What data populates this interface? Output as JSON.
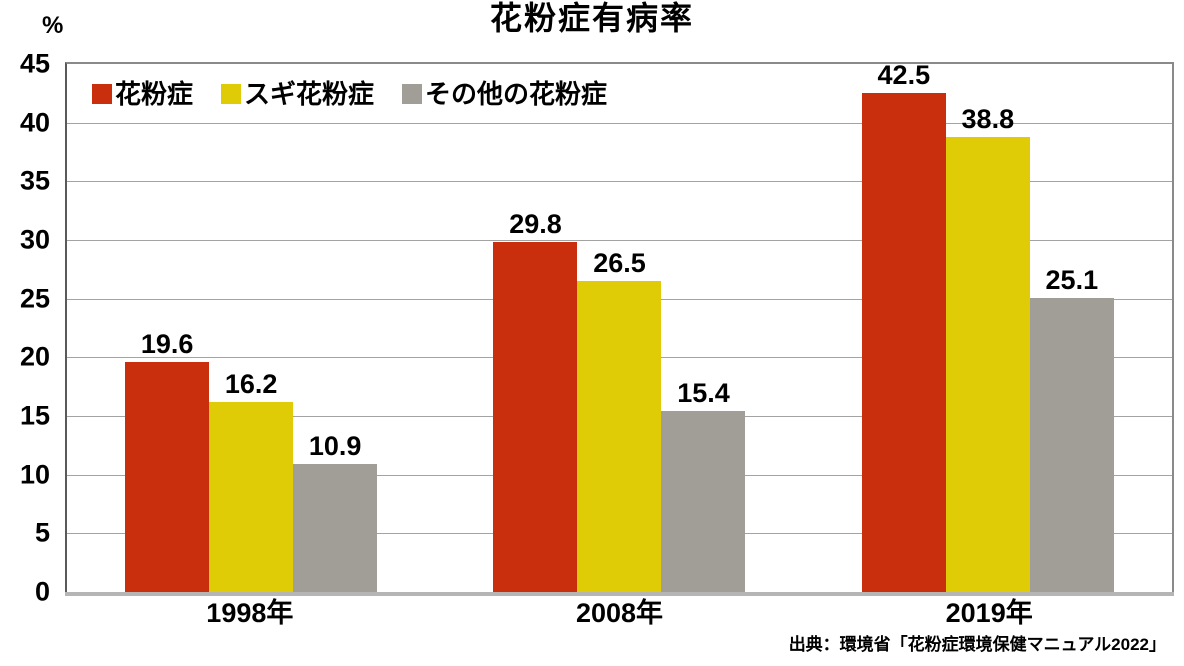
{
  "chart_data": {
    "type": "bar",
    "title": "花粉症有病率",
    "unit": "%",
    "categories": [
      "1998年",
      "2008年",
      "2019年"
    ],
    "series": [
      {
        "name": "花粉症",
        "color": "#CA2F0D",
        "values": [
          19.6,
          29.8,
          42.5
        ]
      },
      {
        "name": "スギ花粉症",
        "color": "#DFCC07",
        "values": [
          16.2,
          26.5,
          38.8
        ]
      },
      {
        "name": "その他の花粉症",
        "color": "#A09E96",
        "values": [
          10.9,
          15.4,
          25.1
        ]
      }
    ],
    "ylim": [
      0,
      45
    ],
    "ytick_step": 5,
    "grid": true,
    "legend_position": "top-left-inside",
    "value_labels": true
  },
  "source": "出典：環境省「花粉症環境保健マニュアル2022」"
}
